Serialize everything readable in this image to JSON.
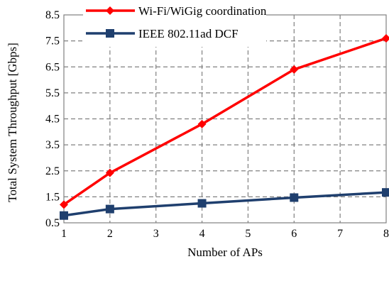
{
  "chart_data": {
    "type": "line",
    "xlabel": "Number of APs",
    "ylabel": "Total  System Throughput  [Gbps]",
    "x_ticks": [
      "1",
      "2",
      "3",
      "4",
      "5",
      "6",
      "7",
      "8"
    ],
    "y_ticks": [
      "0.5",
      "1.5",
      "2.5",
      "3.5",
      "4.5",
      "5.5",
      "6.5",
      "7.5",
      "8.5"
    ],
    "xlim": [
      1,
      8
    ],
    "ylim": [
      0.5,
      8.5
    ],
    "grid": true,
    "legend_position": "top-center",
    "series": [
      {
        "name": "Wi-Fi/WiGig coordination",
        "color": "#ff0000",
        "marker": "diamond",
        "x": [
          1,
          2,
          4,
          6,
          8
        ],
        "y": [
          1.2,
          2.42,
          4.3,
          6.4,
          7.6
        ]
      },
      {
        "name": "IEEE 802.11ad DCF",
        "color": "#1f3f6e",
        "marker": "square",
        "x": [
          1,
          2,
          4,
          6,
          8
        ],
        "y": [
          0.78,
          1.03,
          1.25,
          1.47,
          1.67
        ]
      }
    ]
  }
}
